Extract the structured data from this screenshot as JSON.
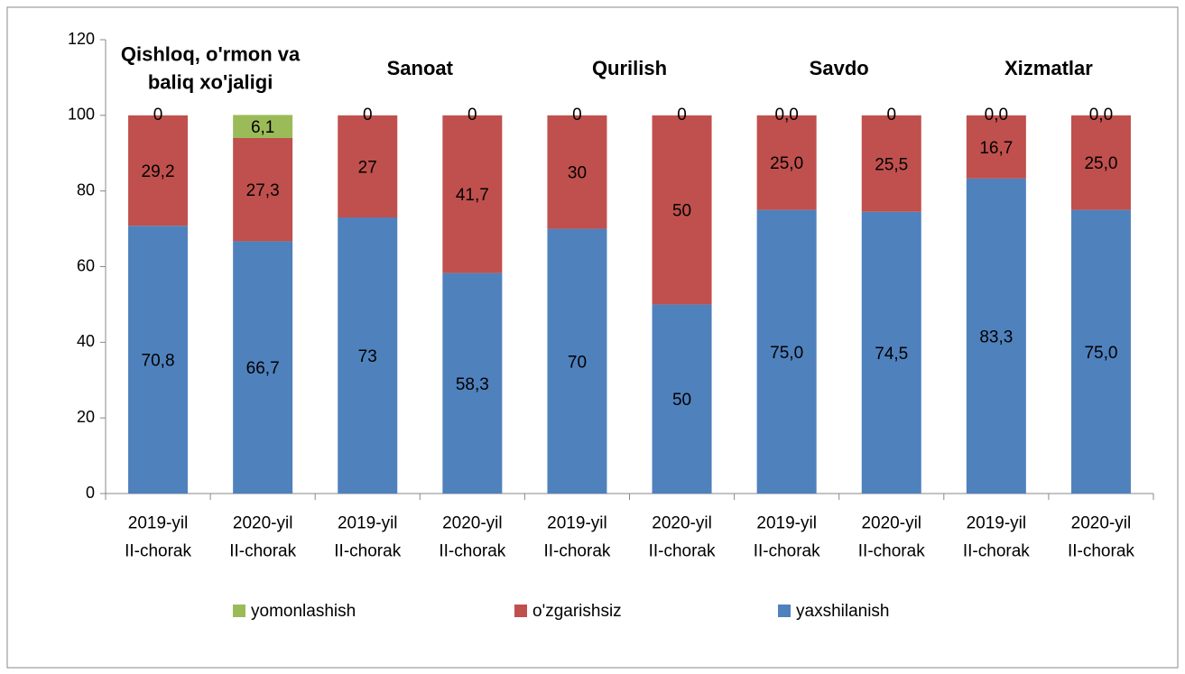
{
  "chart_data": {
    "type": "stacked_bar",
    "annotations": [
      "Qishloq, o'rmon va\nbaliq xo'jaligi",
      "Sanoat",
      "Qurilish",
      "Savdo",
      "Xizmatlar"
    ],
    "categories": [
      "2019-yil\nII-chorak",
      "2020-yil\nII-chorak",
      "2019-yil\nII-chorak",
      "2020-yil\nII-chorak",
      "2019-yil\nII-chorak",
      "2020-yil\nII-chorak",
      "2019-yil\nII-chorak",
      "2020-yil\nII-chorak",
      "2019-yil\nII-chorak",
      "2020-yil\nII-chorak"
    ],
    "series": [
      {
        "name": "yomonlashish",
        "color": "#9bbb59",
        "values": [
          0,
          6.1,
          0,
          0,
          0,
          0,
          0.0,
          0,
          0.0,
          0.0
        ],
        "value_labels": [
          "0",
          "6,1",
          "0",
          "0",
          "0",
          "0",
          "0,0",
          "0",
          "0,0",
          "0,0"
        ]
      },
      {
        "name": "o'zgarishsiz",
        "color": "#c0504d",
        "values": [
          29.2,
          27.3,
          27,
          41.7,
          30,
          50,
          25.0,
          25.5,
          16.7,
          25.0
        ],
        "value_labels": [
          "29,2",
          "27,3",
          "27",
          "41,7",
          "30",
          "50",
          "25,0",
          "25,5",
          "16,7",
          "25,0"
        ]
      },
      {
        "name": "yaxshilanish",
        "color": "#4f81bd",
        "values": [
          70.8,
          66.7,
          73,
          58.3,
          70,
          50,
          75.0,
          74.5,
          83.3,
          75.0
        ],
        "value_labels": [
          "70,8",
          "66,7",
          "73",
          "58,3",
          "70",
          "50",
          "75,0",
          "74,5",
          "83,3",
          "75,0"
        ]
      }
    ],
    "ylim": [
      0,
      120
    ],
    "yticks": [
      0,
      20,
      40,
      60,
      80,
      100,
      120
    ],
    "legend": "bottom"
  }
}
